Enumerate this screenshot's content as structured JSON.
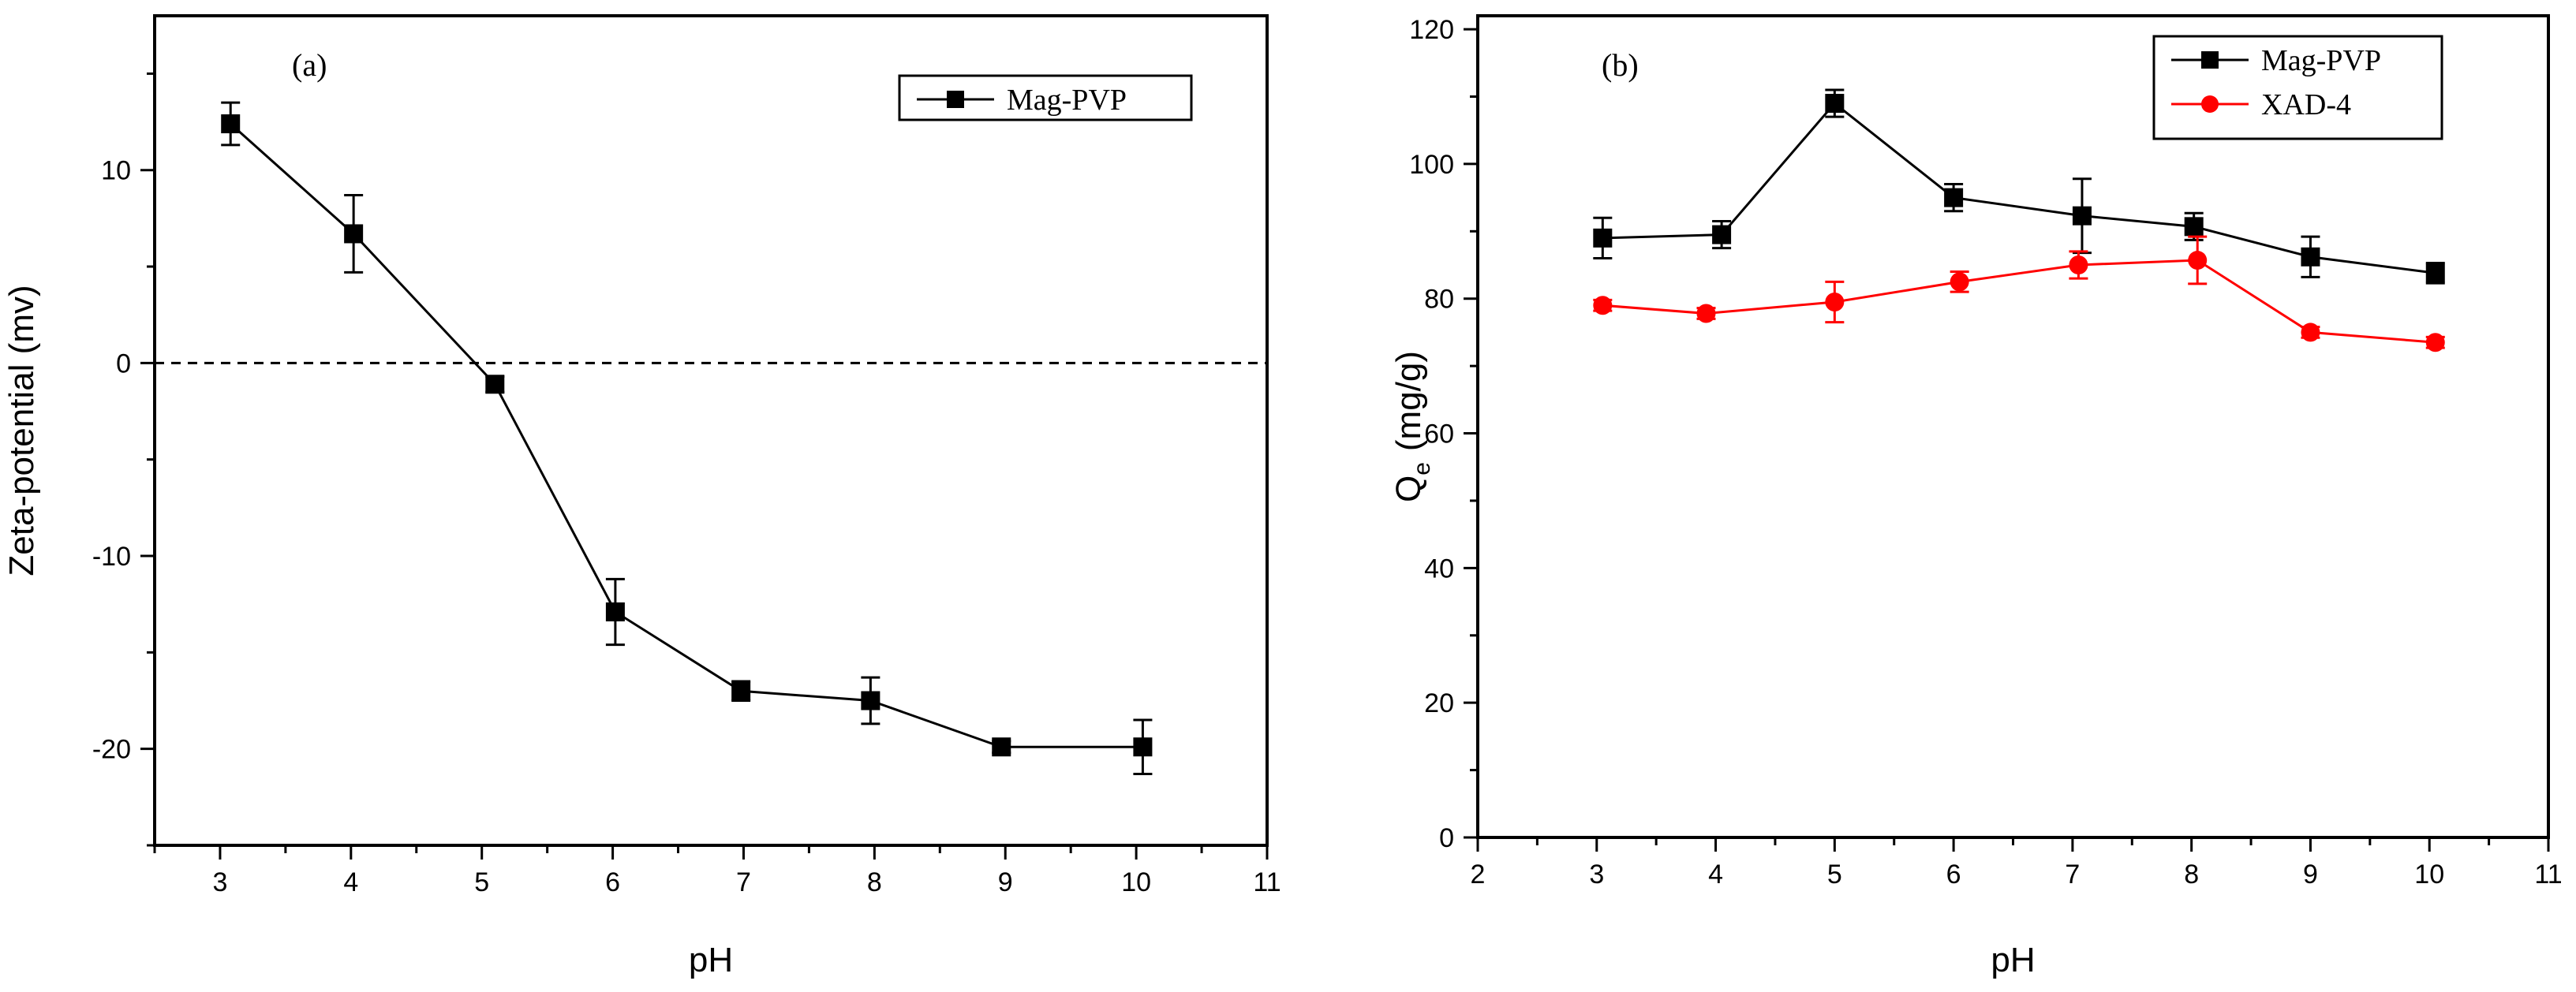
{
  "chart_data": [
    {
      "type": "line",
      "panel_label": "(a)",
      "title": "",
      "xlabel": "pH",
      "ylabel": "Zeta-potential (mv)",
      "xlim": [
        2.5,
        11
      ],
      "ylim": [
        -25,
        18
      ],
      "xticks": [
        3,
        4,
        5,
        6,
        7,
        8,
        9,
        10,
        11
      ],
      "yticks": [
        -20,
        -10,
        0,
        10
      ],
      "xtick_labels": [
        "3",
        "4",
        "5",
        "6",
        "7",
        "8",
        "9",
        "10",
        "11"
      ],
      "ytick_labels": [
        "-20",
        "-10",
        "0",
        "10"
      ],
      "reference_line": {
        "y": 0,
        "style": "dashed"
      },
      "legend": {
        "position": "top-right"
      },
      "series": [
        {
          "name": "Mag-PVP",
          "color": "#000000",
          "marker": "square",
          "x": [
            3.08,
            4.02,
            5.1,
            6.02,
            6.98,
            7.97,
            8.97,
            10.05
          ],
          "y": [
            12.4,
            6.7,
            -1.1,
            -12.9,
            -17.0,
            -17.5,
            -19.9,
            -19.9
          ],
          "err": [
            1.1,
            2.0,
            0.4,
            1.7,
            0.5,
            1.2,
            0.3,
            1.4
          ]
        }
      ]
    },
    {
      "type": "line",
      "panel_label": "(b)",
      "title": "",
      "xlabel": "pH",
      "ylabel_main": "Q",
      "ylabel_sub": "e",
      "ylabel_unit": "(mg/g)",
      "xlim": [
        2,
        11
      ],
      "ylim": [
        0,
        122
      ],
      "xticks": [
        2,
        3,
        4,
        5,
        6,
        7,
        8,
        9,
        10,
        11
      ],
      "yticks": [
        0,
        20,
        40,
        60,
        80,
        100,
        120
      ],
      "xtick_labels": [
        "2",
        "3",
        "4",
        "5",
        "6",
        "7",
        "8",
        "9",
        "10",
        "11"
      ],
      "ytick_labels": [
        "0",
        "20",
        "40",
        "60",
        "80",
        "100",
        "120"
      ],
      "legend": {
        "position": "top-right"
      },
      "series": [
        {
          "name": "Mag-PVP",
          "color": "#000000",
          "marker": "square",
          "x": [
            3.05,
            4.05,
            5.0,
            6.0,
            7.08,
            8.02,
            9.0,
            10.05
          ],
          "y": [
            89,
            89.5,
            109,
            95,
            92.3,
            90.7,
            86.2,
            83.8
          ],
          "err": [
            3,
            2,
            2,
            2,
            5.5,
            2,
            3,
            1.5
          ]
        },
        {
          "name": "XAD-4",
          "color": "#ff0000",
          "marker": "circle",
          "x": [
            3.05,
            3.92,
            5.0,
            6.05,
            7.05,
            8.05,
            9.0,
            10.05
          ],
          "y": [
            79,
            77.8,
            79.5,
            82.5,
            85,
            85.7,
            75,
            73.5
          ],
          "err": [
            0.8,
            0.8,
            3,
            1.5,
            2,
            3.5,
            0.8,
            0.8
          ]
        }
      ]
    }
  ]
}
